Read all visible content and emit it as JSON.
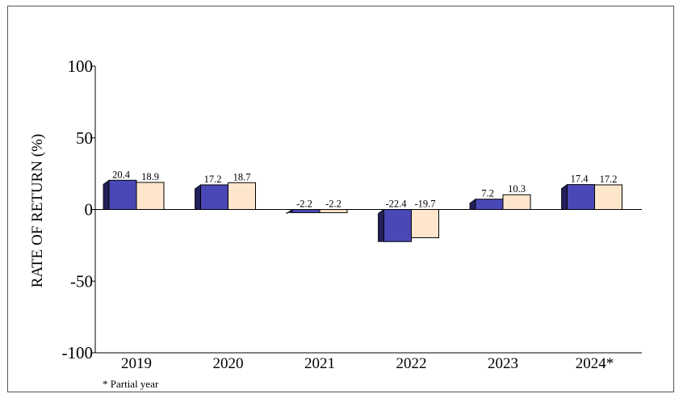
{
  "chart_data": {
    "type": "bar",
    "title": "",
    "xlabel": "",
    "ylabel": "RATE OF RETURN (%)",
    "ylim": [
      -100,
      100
    ],
    "yticks": [
      100,
      50,
      0,
      -50,
      -100
    ],
    "categories": [
      "2019",
      "2020",
      "2021",
      "2022",
      "2023",
      "2024*"
    ],
    "series": [
      {
        "color": "#4a48b6",
        "values": [
          20.4,
          17.2,
          -2.2,
          -22.4,
          7.2,
          17.4
        ]
      },
      {
        "color": "#fde6cc",
        "values": [
          18.9,
          18.7,
          -2.2,
          -19.7,
          10.3,
          17.2
        ]
      }
    ],
    "data_labels": [
      [
        "20.4",
        "17.2",
        "-2.2",
        "-22.4",
        "7.2",
        "17.4"
      ],
      [
        "18.9",
        "18.7",
        "-2.2",
        "-19.7",
        "10.3",
        "17.2"
      ]
    ],
    "grid": false,
    "legend": "none",
    "footnote": "* Partial year",
    "style": "3d-bars"
  }
}
